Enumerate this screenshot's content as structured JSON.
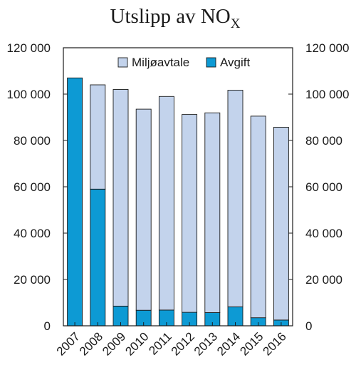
{
  "chart_data": {
    "type": "bar",
    "stacked": true,
    "title": "Utslipp av NO",
    "title_subscript": "X",
    "categories": [
      "2007",
      "2008",
      "2009",
      "2010",
      "2011",
      "2012",
      "2013",
      "2014",
      "2015",
      "2016"
    ],
    "series": [
      {
        "name": "Avgift",
        "color": "#0d9ad4",
        "values": [
          107000,
          59000,
          8500,
          6700,
          6800,
          5800,
          5700,
          8200,
          3500,
          2500
        ]
      },
      {
        "name": "Miljøavtale",
        "color": "#c3d3ec",
        "values": [
          0,
          45000,
          93500,
          86800,
          92200,
          85400,
          86200,
          93500,
          87000,
          83200
        ]
      }
    ],
    "ylim": [
      0,
      120000
    ],
    "yticks": [
      0,
      20000,
      40000,
      60000,
      80000,
      100000,
      120000
    ],
    "ytick_labels": [
      "0",
      "20 000",
      "40 000",
      "60 000",
      "80 000",
      "100 000",
      "120 000"
    ],
    "legend": {
      "placement": "top-right",
      "entries": [
        {
          "label": "Miljøavtale",
          "color": "#c3d3ec"
        },
        {
          "label": "Avgift",
          "color": "#0d9ad4"
        }
      ]
    },
    "grid": false
  }
}
